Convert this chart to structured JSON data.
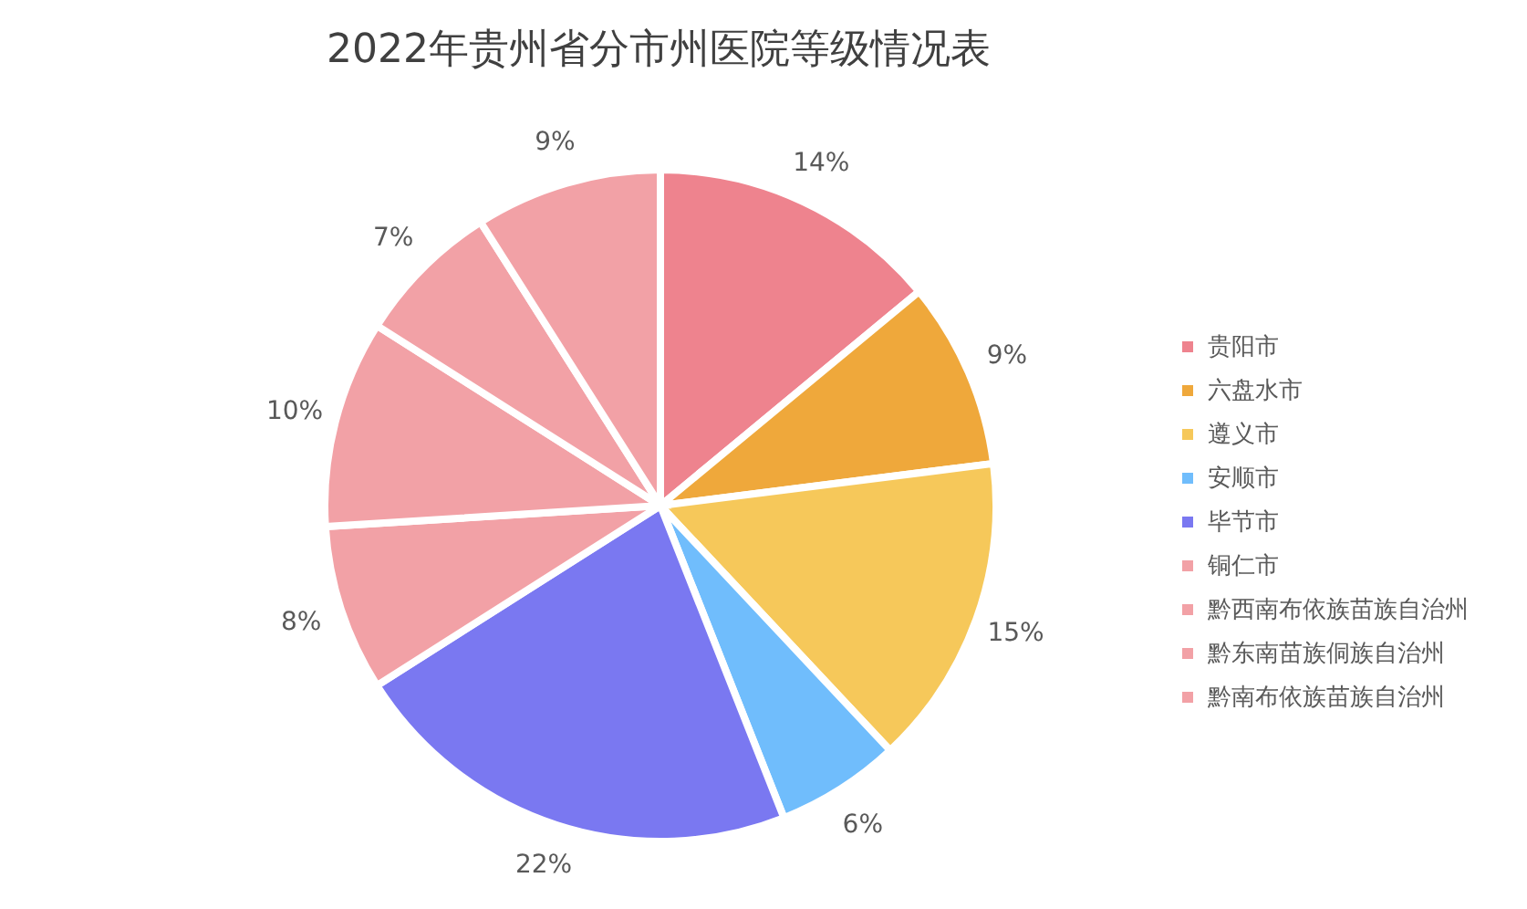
{
  "chart_data": {
    "type": "pie",
    "title": "2022年贵州省分市州医院等级情况表",
    "categories": [
      "贵阳市",
      "六盘水市",
      "遵义市",
      "安顺市",
      "毕节市",
      "铜仁市",
      "黔西南布依族苗族自治州",
      "黔东南苗族侗族自治州",
      "黔南布依族苗族自治州"
    ],
    "values": [
      14,
      9,
      15,
      6,
      22,
      8,
      10,
      7,
      9
    ],
    "colors": [
      "#ee838e",
      "#efa83b",
      "#f6c85a",
      "#70bdfc",
      "#7a78f1",
      "#f2a1a6",
      "#f2a1a6",
      "#f2a1a6",
      "#f2a1a6"
    ],
    "value_labels": [
      "14%",
      "9%",
      "15%",
      "6%",
      "22%",
      "8%",
      "10%",
      "7%",
      "9%"
    ],
    "legend": "right"
  }
}
